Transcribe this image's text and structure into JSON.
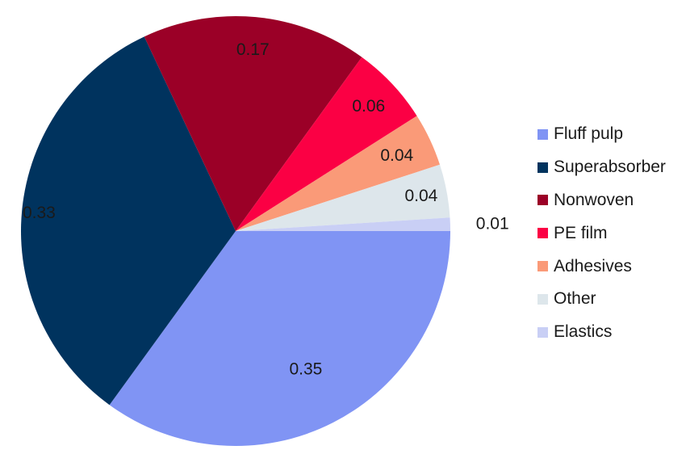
{
  "chart_data": {
    "type": "pie",
    "title": "",
    "categories": [
      "Fluff pulp",
      "Superabsorber",
      "Nonwoven",
      "PE film",
      "Adhesives",
      "Other",
      "Elastics"
    ],
    "values": [
      0.35,
      0.33,
      0.17,
      0.06,
      0.04,
      0.04,
      0.01
    ],
    "data_labels": [
      "0.35",
      "0.33",
      "0.17",
      "0.06",
      "0.04",
      "0.04",
      "0.01"
    ],
    "colors": [
      "#8094F4",
      "#00335E",
      "#9B0027",
      "#FB0044",
      "#FA9A78",
      "#DDE6EB",
      "#C9CFF5"
    ],
    "legend_position": "right"
  }
}
